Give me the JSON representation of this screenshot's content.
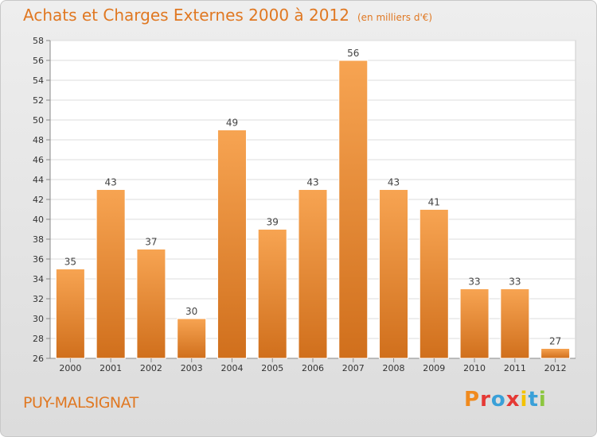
{
  "header": {
    "title": "Achats et Charges Externes 2000 à 2012",
    "unit": "(en milliers d'€)"
  },
  "footer": {
    "commune": "PUY-MALSIGNAT",
    "logo_text": "Proxiti"
  },
  "colors": {
    "accent": "#e07822",
    "bar_light": "#f7a452",
    "bar_dark": "#d06f1c",
    "logo_letters": [
      "#f08a1e",
      "#e53935",
      "#3aa0d8",
      "#e53935",
      "#f4c200",
      "#3aa0d8",
      "#8cc63f"
    ]
  },
  "chart_data": {
    "type": "bar",
    "categories": [
      "2000",
      "2001",
      "2002",
      "2003",
      "2004",
      "2005",
      "2006",
      "2007",
      "2008",
      "2009",
      "2010",
      "2011",
      "2012"
    ],
    "values": [
      35,
      43,
      37,
      30,
      49,
      39,
      43,
      56,
      43,
      41,
      33,
      33,
      27
    ],
    "title": "Achats et Charges Externes 2000 à 2012",
    "xlabel": "",
    "ylabel": "",
    "ylim": [
      26,
      58
    ],
    "yticks": [
      26,
      28,
      30,
      32,
      34,
      36,
      38,
      40,
      42,
      44,
      46,
      48,
      50,
      52,
      54,
      56,
      58
    ],
    "grid": true,
    "data_labels": true
  }
}
